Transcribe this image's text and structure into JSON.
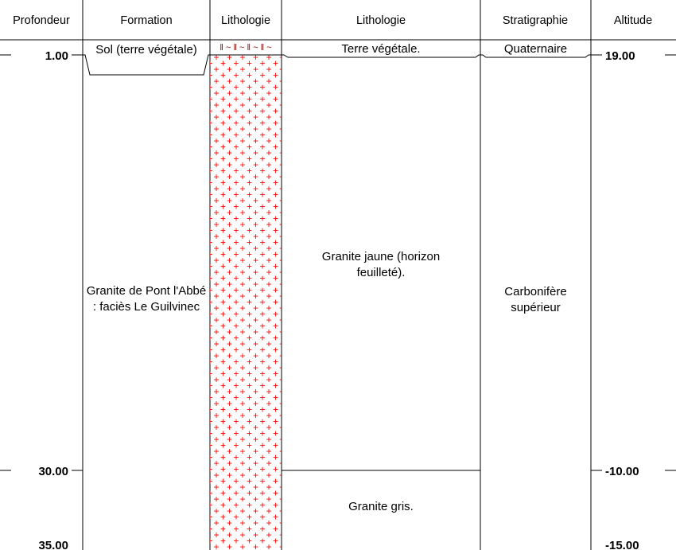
{
  "headers": {
    "depth": "Profondeur",
    "formation": "Formation",
    "lithology_pattern": "Lithologie",
    "lithology": "Lithologie",
    "stratigraphy": "Stratigraphie",
    "altitude": "Altitude"
  },
  "depth_ticks": [
    "1.00",
    "30.00",
    "35.00"
  ],
  "altitude_ticks": [
    "19.00",
    "-10.00",
    "-15.00"
  ],
  "formations": {
    "soil": "Sol (terre végétale)",
    "granite": "Granite de Pont l'Abbé : faciès Le Guilvinec"
  },
  "lithology": {
    "soil": "Terre végétale.",
    "granite_yellow": "Granite jaune (horizon feuilleté).",
    "granite_grey": "Granite gris."
  },
  "stratigraphy": {
    "quaternary": "Quaternaire",
    "carboniferous": "Carbonifère supérieur"
  },
  "pattern": {
    "soil_symbols": "‖ ~ ‖ ~ ‖ ~ ‖ ~",
    "granite_symbol": "+",
    "granite_color": "#ff0000",
    "soil_color": "#8b0000"
  }
}
